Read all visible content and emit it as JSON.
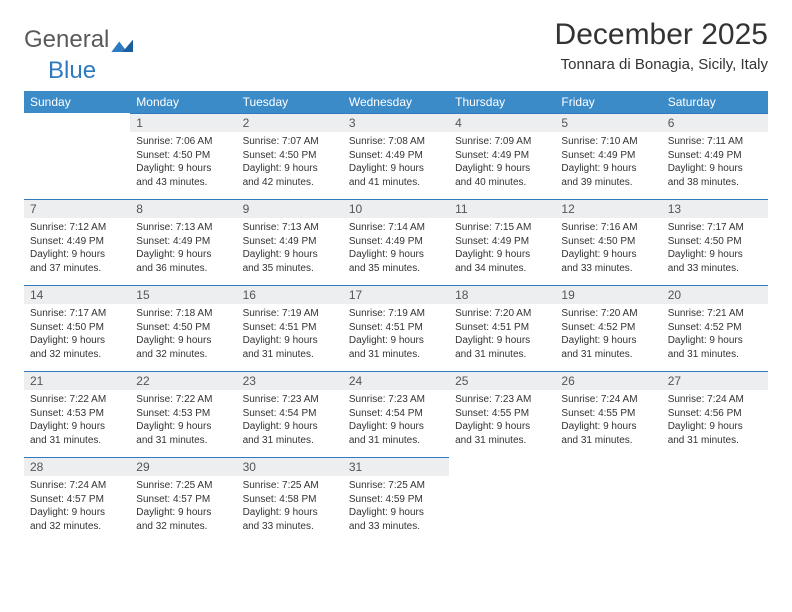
{
  "brand": {
    "part1": "General",
    "part2": "Blue"
  },
  "title": "December 2025",
  "location": "Tonnara di Bonagia, Sicily, Italy",
  "header_bg": "#3b8bc8",
  "daynum_bg": "#eceeef",
  "rule_color": "#2f7abf",
  "day_headers": [
    "Sunday",
    "Monday",
    "Tuesday",
    "Wednesday",
    "Thursday",
    "Friday",
    "Saturday"
  ],
  "weeks": [
    [
      {
        "n": "",
        "lines": [
          "",
          "",
          "",
          ""
        ]
      },
      {
        "n": "1",
        "lines": [
          "Sunrise: 7:06 AM",
          "Sunset: 4:50 PM",
          "Daylight: 9 hours",
          "and 43 minutes."
        ]
      },
      {
        "n": "2",
        "lines": [
          "Sunrise: 7:07 AM",
          "Sunset: 4:50 PM",
          "Daylight: 9 hours",
          "and 42 minutes."
        ]
      },
      {
        "n": "3",
        "lines": [
          "Sunrise: 7:08 AM",
          "Sunset: 4:49 PM",
          "Daylight: 9 hours",
          "and 41 minutes."
        ]
      },
      {
        "n": "4",
        "lines": [
          "Sunrise: 7:09 AM",
          "Sunset: 4:49 PM",
          "Daylight: 9 hours",
          "and 40 minutes."
        ]
      },
      {
        "n": "5",
        "lines": [
          "Sunrise: 7:10 AM",
          "Sunset: 4:49 PM",
          "Daylight: 9 hours",
          "and 39 minutes."
        ]
      },
      {
        "n": "6",
        "lines": [
          "Sunrise: 7:11 AM",
          "Sunset: 4:49 PM",
          "Daylight: 9 hours",
          "and 38 minutes."
        ]
      }
    ],
    [
      {
        "n": "7",
        "lines": [
          "Sunrise: 7:12 AM",
          "Sunset: 4:49 PM",
          "Daylight: 9 hours",
          "and 37 minutes."
        ]
      },
      {
        "n": "8",
        "lines": [
          "Sunrise: 7:13 AM",
          "Sunset: 4:49 PM",
          "Daylight: 9 hours",
          "and 36 minutes."
        ]
      },
      {
        "n": "9",
        "lines": [
          "Sunrise: 7:13 AM",
          "Sunset: 4:49 PM",
          "Daylight: 9 hours",
          "and 35 minutes."
        ]
      },
      {
        "n": "10",
        "lines": [
          "Sunrise: 7:14 AM",
          "Sunset: 4:49 PM",
          "Daylight: 9 hours",
          "and 35 minutes."
        ]
      },
      {
        "n": "11",
        "lines": [
          "Sunrise: 7:15 AM",
          "Sunset: 4:49 PM",
          "Daylight: 9 hours",
          "and 34 minutes."
        ]
      },
      {
        "n": "12",
        "lines": [
          "Sunrise: 7:16 AM",
          "Sunset: 4:50 PM",
          "Daylight: 9 hours",
          "and 33 minutes."
        ]
      },
      {
        "n": "13",
        "lines": [
          "Sunrise: 7:17 AM",
          "Sunset: 4:50 PM",
          "Daylight: 9 hours",
          "and 33 minutes."
        ]
      }
    ],
    [
      {
        "n": "14",
        "lines": [
          "Sunrise: 7:17 AM",
          "Sunset: 4:50 PM",
          "Daylight: 9 hours",
          "and 32 minutes."
        ]
      },
      {
        "n": "15",
        "lines": [
          "Sunrise: 7:18 AM",
          "Sunset: 4:50 PM",
          "Daylight: 9 hours",
          "and 32 minutes."
        ]
      },
      {
        "n": "16",
        "lines": [
          "Sunrise: 7:19 AM",
          "Sunset: 4:51 PM",
          "Daylight: 9 hours",
          "and 31 minutes."
        ]
      },
      {
        "n": "17",
        "lines": [
          "Sunrise: 7:19 AM",
          "Sunset: 4:51 PM",
          "Daylight: 9 hours",
          "and 31 minutes."
        ]
      },
      {
        "n": "18",
        "lines": [
          "Sunrise: 7:20 AM",
          "Sunset: 4:51 PM",
          "Daylight: 9 hours",
          "and 31 minutes."
        ]
      },
      {
        "n": "19",
        "lines": [
          "Sunrise: 7:20 AM",
          "Sunset: 4:52 PM",
          "Daylight: 9 hours",
          "and 31 minutes."
        ]
      },
      {
        "n": "20",
        "lines": [
          "Sunrise: 7:21 AM",
          "Sunset: 4:52 PM",
          "Daylight: 9 hours",
          "and 31 minutes."
        ]
      }
    ],
    [
      {
        "n": "21",
        "lines": [
          "Sunrise: 7:22 AM",
          "Sunset: 4:53 PM",
          "Daylight: 9 hours",
          "and 31 minutes."
        ]
      },
      {
        "n": "22",
        "lines": [
          "Sunrise: 7:22 AM",
          "Sunset: 4:53 PM",
          "Daylight: 9 hours",
          "and 31 minutes."
        ]
      },
      {
        "n": "23",
        "lines": [
          "Sunrise: 7:23 AM",
          "Sunset: 4:54 PM",
          "Daylight: 9 hours",
          "and 31 minutes."
        ]
      },
      {
        "n": "24",
        "lines": [
          "Sunrise: 7:23 AM",
          "Sunset: 4:54 PM",
          "Daylight: 9 hours",
          "and 31 minutes."
        ]
      },
      {
        "n": "25",
        "lines": [
          "Sunrise: 7:23 AM",
          "Sunset: 4:55 PM",
          "Daylight: 9 hours",
          "and 31 minutes."
        ]
      },
      {
        "n": "26",
        "lines": [
          "Sunrise: 7:24 AM",
          "Sunset: 4:55 PM",
          "Daylight: 9 hours",
          "and 31 minutes."
        ]
      },
      {
        "n": "27",
        "lines": [
          "Sunrise: 7:24 AM",
          "Sunset: 4:56 PM",
          "Daylight: 9 hours",
          "and 31 minutes."
        ]
      }
    ],
    [
      {
        "n": "28",
        "lines": [
          "Sunrise: 7:24 AM",
          "Sunset: 4:57 PM",
          "Daylight: 9 hours",
          "and 32 minutes."
        ]
      },
      {
        "n": "29",
        "lines": [
          "Sunrise: 7:25 AM",
          "Sunset: 4:57 PM",
          "Daylight: 9 hours",
          "and 32 minutes."
        ]
      },
      {
        "n": "30",
        "lines": [
          "Sunrise: 7:25 AM",
          "Sunset: 4:58 PM",
          "Daylight: 9 hours",
          "and 33 minutes."
        ]
      },
      {
        "n": "31",
        "lines": [
          "Sunrise: 7:25 AM",
          "Sunset: 4:59 PM",
          "Daylight: 9 hours",
          "and 33 minutes."
        ]
      },
      {
        "n": "",
        "lines": [
          "",
          "",
          "",
          ""
        ]
      },
      {
        "n": "",
        "lines": [
          "",
          "",
          "",
          ""
        ]
      },
      {
        "n": "",
        "lines": [
          "",
          "",
          "",
          ""
        ]
      }
    ]
  ]
}
